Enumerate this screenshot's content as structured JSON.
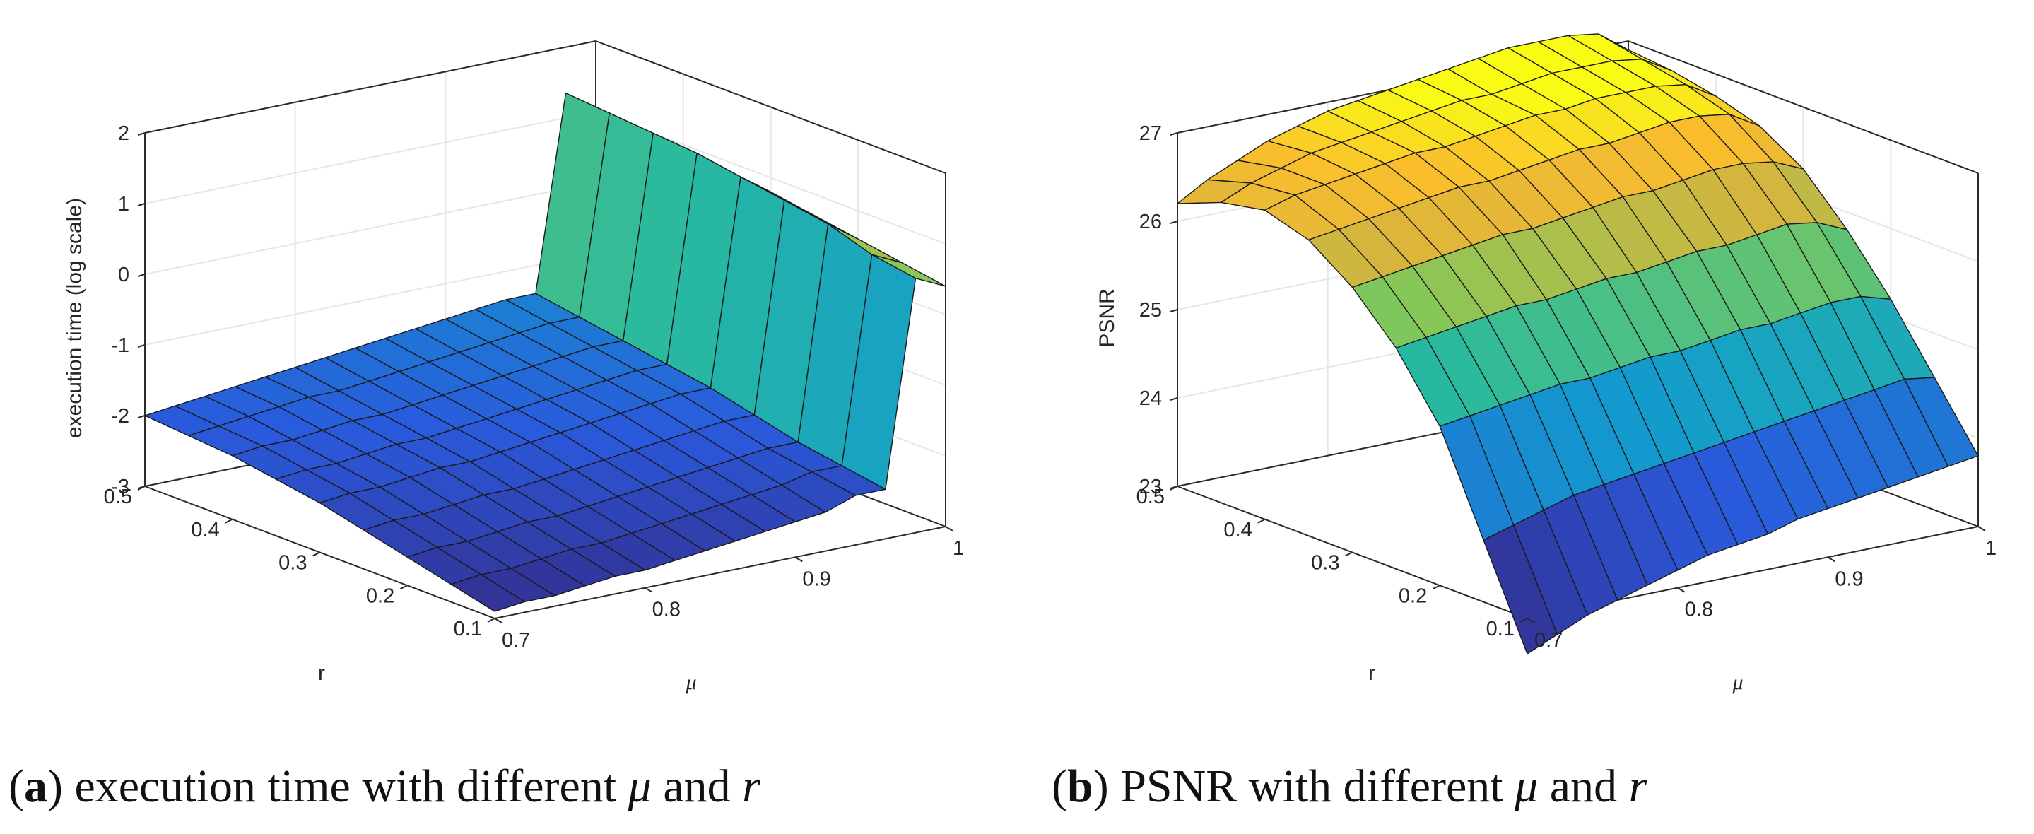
{
  "chart_data": [
    {
      "type": "surface",
      "id": "a",
      "caption": {
        "letter": "a",
        "text_before": "execution time with different",
        "mu": "μ",
        "and": "and",
        "r": "r"
      },
      "xlabel": "μ",
      "ylabel": "r",
      "zlabel": "execution time (log scale)",
      "x_ticks": [
        "0.7",
        "0.8",
        "0.9",
        "1"
      ],
      "y_ticks": [
        "0.1",
        "0.2",
        "0.3",
        "0.4",
        "0.5"
      ],
      "z_ticks": [
        "-3",
        "-2",
        "-1",
        "0",
        "1",
        "2"
      ],
      "xlim": [
        0.7,
        1.0
      ],
      "ylim": [
        0.1,
        0.5
      ],
      "zlim": [
        -3,
        2
      ],
      "mu": [
        0.7,
        0.72,
        0.74,
        0.76,
        0.78,
        0.8,
        0.82,
        0.84,
        0.86,
        0.88,
        0.9,
        0.92,
        0.94,
        0.96,
        0.98,
        1.0
      ],
      "r": [
        0.1,
        0.15,
        0.2,
        0.25,
        0.3,
        0.35,
        0.4,
        0.45,
        0.5
      ],
      "z_description": "log execution time; rows indexed by r (0.1→0.5), columns by μ (0.7→1.0)",
      "z": [
        [
          -2.9,
          -2.85,
          -2.85,
          -2.8,
          -2.75,
          -2.75,
          -2.7,
          -2.65,
          -2.6,
          -2.55,
          -2.5,
          -2.45,
          -2.3,
          -2.3,
          0.6,
          0.4
        ],
        [
          -2.75,
          -2.7,
          -2.7,
          -2.65,
          -2.6,
          -2.6,
          -2.55,
          -2.5,
          -2.45,
          -2.4,
          -2.35,
          -2.3,
          -2.2,
          -2.2,
          0.7,
          0.5
        ],
        [
          -2.6,
          -2.55,
          -2.55,
          -2.5,
          -2.45,
          -2.45,
          -2.4,
          -2.35,
          -2.3,
          -2.25,
          -2.2,
          -2.15,
          -2.1,
          -2.1,
          0.9,
          0.6
        ],
        [
          -2.45,
          -2.4,
          -2.4,
          -2.35,
          -2.3,
          -2.3,
          -2.25,
          -2.2,
          -2.15,
          -2.1,
          -2.05,
          -2.0,
          -1.95,
          -1.95,
          1.0,
          0.7
        ],
        [
          -2.3,
          -2.25,
          -2.25,
          -2.2,
          -2.15,
          -2.15,
          -2.1,
          -2.05,
          -2.0,
          -1.95,
          -1.9,
          -1.85,
          -1.8,
          -1.8,
          1.1,
          0.8
        ],
        [
          -2.2,
          -2.15,
          -2.15,
          -2.1,
          -2.05,
          -2.05,
          -2.0,
          -1.95,
          -1.9,
          -1.85,
          -1.8,
          -1.75,
          -1.7,
          -1.7,
          1.2,
          0.85
        ],
        [
          -2.1,
          -2.05,
          -2.05,
          -2.0,
          -1.95,
          -1.95,
          -1.9,
          -1.85,
          -1.8,
          -1.75,
          -1.7,
          -1.65,
          -1.6,
          -1.6,
          1.25,
          0.9
        ],
        [
          -2.05,
          -2.0,
          -1.95,
          -1.9,
          -1.85,
          -1.85,
          -1.8,
          -1.75,
          -1.7,
          -1.65,
          -1.6,
          -1.55,
          -1.5,
          -1.5,
          1.3,
          0.95
        ],
        [
          -2.0,
          -1.95,
          -1.9,
          -1.85,
          -1.8,
          -1.75,
          -1.7,
          -1.65,
          -1.6,
          -1.55,
          -1.5,
          -1.45,
          -1.4,
          -1.4,
          1.35,
          1.0
        ]
      ]
    },
    {
      "type": "surface",
      "id": "b",
      "caption": {
        "letter": "b",
        "text_before": "PSNR with different",
        "mu": "μ",
        "and": "and",
        "r": "r"
      },
      "xlabel": "μ",
      "ylabel": "r",
      "zlabel": "PSNR",
      "x_ticks": [
        "0.7",
        "0.8",
        "0.9",
        "1"
      ],
      "y_ticks": [
        "0.1",
        "0.2",
        "0.3",
        "0.4",
        "0.5"
      ],
      "z_ticks": [
        "23",
        "24",
        "25",
        "26",
        "27"
      ],
      "xlim": [
        0.7,
        1.0
      ],
      "ylim": [
        0.1,
        0.5
      ],
      "zlim": [
        23,
        27
      ],
      "mu": [
        0.7,
        0.72,
        0.74,
        0.76,
        0.78,
        0.8,
        0.82,
        0.84,
        0.86,
        0.88,
        0.9,
        0.92,
        0.94,
        0.96,
        0.98,
        1.0
      ],
      "r": [
        0.1,
        0.15,
        0.2,
        0.25,
        0.3,
        0.35,
        0.4,
        0.45,
        0.5
      ],
      "z_description": "PSNR; rows indexed by r (0.1→0.5), columns by μ (0.7→1.0)",
      "z": [
        [
          22.6,
          22.75,
          22.9,
          23.0,
          23.1,
          23.2,
          23.3,
          23.35,
          23.4,
          23.5,
          23.55,
          23.6,
          23.65,
          23.7,
          23.75,
          23.8
        ],
        [
          23.7,
          23.8,
          23.9,
          24.0,
          24.05,
          24.1,
          24.15,
          24.2,
          24.25,
          24.3,
          24.35,
          24.4,
          24.45,
          24.5,
          24.55,
          24.5
        ],
        [
          24.8,
          24.85,
          24.9,
          24.95,
          25.0,
          25.0,
          25.05,
          25.1,
          25.1,
          25.15,
          25.2,
          25.2,
          25.25,
          25.3,
          25.3,
          25.2
        ],
        [
          25.5,
          25.55,
          25.6,
          25.65,
          25.7,
          25.7,
          25.75,
          25.8,
          25.8,
          25.85,
          25.9,
          25.9,
          25.95,
          26.0,
          25.95,
          25.8
        ],
        [
          26.0,
          26.05,
          26.1,
          26.15,
          26.2,
          26.25,
          26.25,
          26.3,
          26.35,
          26.4,
          26.4,
          26.45,
          26.5,
          26.5,
          26.45,
          26.3
        ],
        [
          26.35,
          26.4,
          26.45,
          26.5,
          26.55,
          26.6,
          26.6,
          26.65,
          26.7,
          26.75,
          26.75,
          26.8,
          26.85,
          26.85,
          26.8,
          26.6
        ],
        [
          26.5,
          26.6,
          26.65,
          26.7,
          26.75,
          26.8,
          26.8,
          26.85,
          26.9,
          26.95,
          26.95,
          27.0,
          27.0,
          27.0,
          26.95,
          26.75
        ],
        [
          26.4,
          26.55,
          26.65,
          26.75,
          26.8,
          26.85,
          26.9,
          26.95,
          27.0,
          27.0,
          27.05,
          27.1,
          27.1,
          27.1,
          27.05,
          26.85
        ],
        [
          26.2,
          26.4,
          26.55,
          26.7,
          26.8,
          26.9,
          26.95,
          27.0,
          27.05,
          27.1,
          27.15,
          27.2,
          27.2,
          27.2,
          27.15,
          26.9
        ]
      ]
    }
  ]
}
